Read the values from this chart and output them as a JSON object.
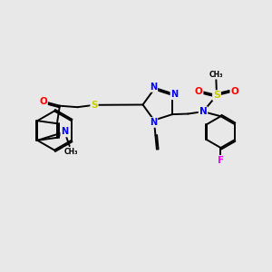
{
  "bg_color": "#e8e8e8",
  "bond_color": "#000000",
  "atom_colors": {
    "N": "#0000ff",
    "S": "#cccc00",
    "O": "#ff0000",
    "F": "#ff00ff",
    "C": "#000000"
  },
  "figsize": [
    3.0,
    3.0
  ],
  "dpi": 100
}
